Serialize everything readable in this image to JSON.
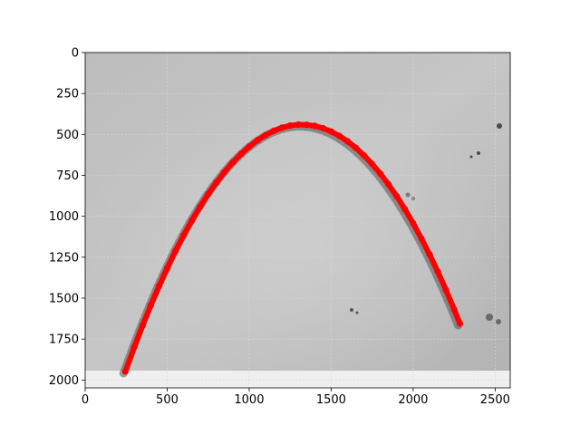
{
  "chart_data": {
    "type": "scatter",
    "title": "",
    "xlabel": "",
    "ylabel": "",
    "xlim": [
      0,
      2592
    ],
    "ylim": [
      2048,
      0
    ],
    "image_height": 1944,
    "grid": true,
    "legend": "none",
    "x_ticks": [
      0,
      500,
      1000,
      1500,
      2000,
      2500
    ],
    "y_ticks": [
      0,
      250,
      500,
      750,
      1000,
      1250,
      1500,
      1750,
      2000
    ],
    "series": [
      {
        "color": "#ff0000",
        "x": [
          245,
          300,
          350,
          400,
          450,
          500,
          550,
          600,
          650,
          700,
          750,
          800,
          850,
          900,
          950,
          1000,
          1050,
          1100,
          1150,
          1200,
          1250,
          1300,
          1350,
          1400,
          1450,
          1500,
          1550,
          1600,
          1650,
          1700,
          1750,
          1800,
          1850,
          1900,
          1950,
          2000,
          2050,
          2100,
          2150,
          2200,
          2250,
          2285
        ],
        "y": [
          1948,
          1797,
          1667,
          1543,
          1427,
          1317,
          1213,
          1116,
          1026,
          942,
          864,
          794,
          729,
          671,
          620,
          575,
          536,
          504,
          478,
          459,
          446,
          440,
          441,
          448,
          462,
          482,
          509,
          542,
          582,
          628,
          681,
          740,
          806,
          878,
          957,
          1043,
          1135,
          1233,
          1338,
          1450,
          1568,
          1655
        ]
      }
    ]
  }
}
